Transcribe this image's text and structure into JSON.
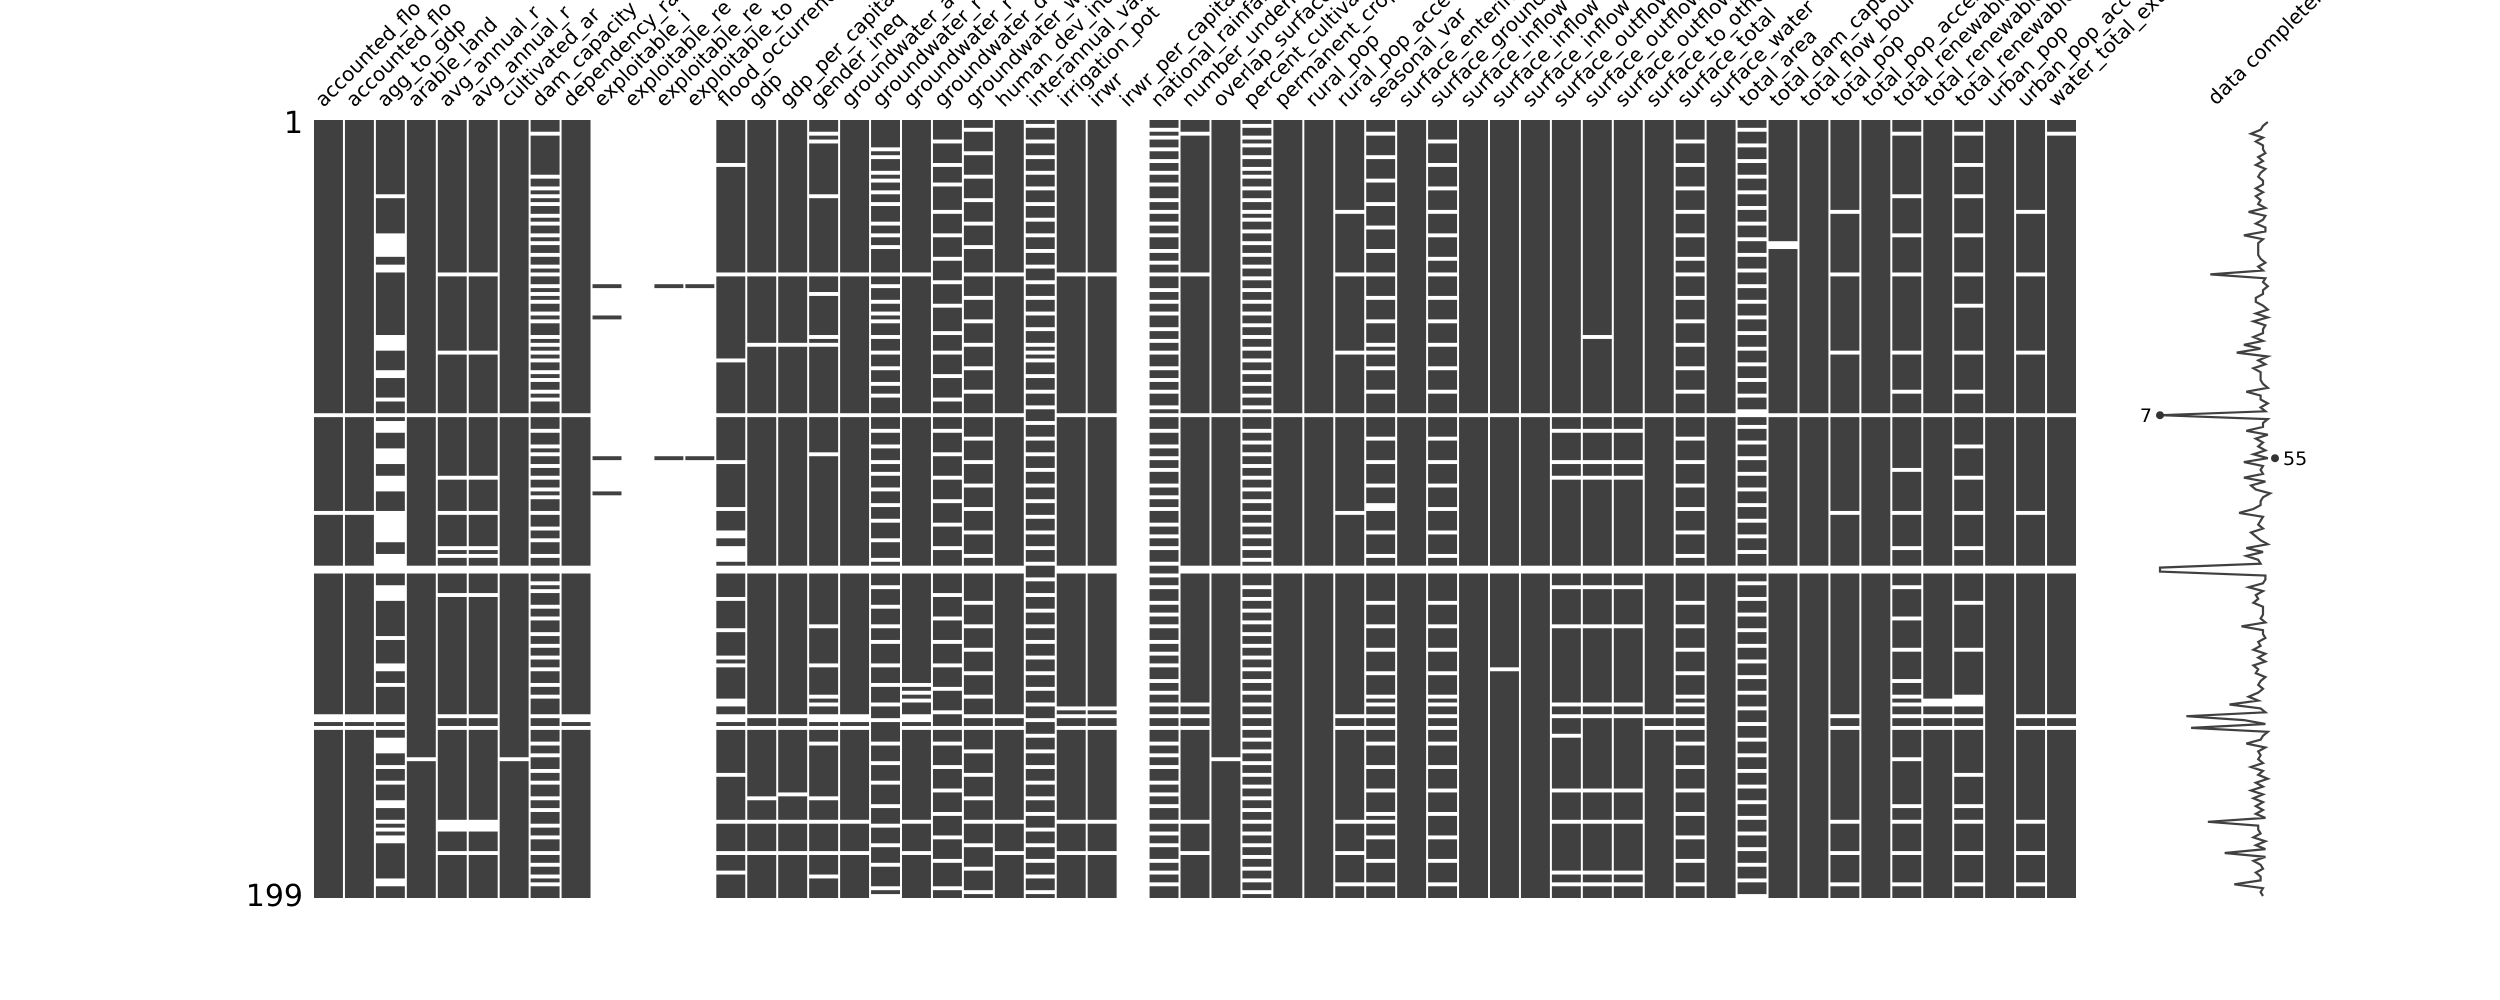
{
  "chart_data": {
    "type": "missingness-matrix",
    "matrix_color": "#404040",
    "background_color": "#ffffff",
    "row_range": [
      1,
      199
    ],
    "row_tick_labels": [
      "1",
      "199"
    ],
    "sparkline_label": "data completeness",
    "sparkline_annotations": {
      "min": {
        "value": 7,
        "row": 76
      },
      "max": {
        "value": 55,
        "row": 87
      }
    },
    "columns": [
      {
        "name": "accounted_flo",
        "missing_rows": [
          76,
          101,
          115,
          116,
          153,
          154,
          156
        ]
      },
      {
        "name": "accounted_flo",
        "missing_rows": [
          76,
          101,
          115,
          116,
          153,
          154,
          156
        ]
      },
      {
        "name": "agg_to_gdp",
        "missing_rows": [
          20,
          30,
          31,
          32,
          33,
          34,
          35,
          38,
          39,
          56,
          57,
          58,
          59,
          65,
          66,
          72,
          76,
          78,
          79,
          80,
          85,
          86,
          87,
          88,
          92,
          93,
          94,
          95,
          101,
          102,
          103,
          104,
          105,
          106,
          107,
          108,
          112,
          113,
          114,
          115,
          116,
          120,
          121,
          122,
          123,
          133,
          140,
          141,
          145,
          153,
          154,
          156,
          159,
          160,
          161,
          162,
          166,
          170,
          175,
          176,
          180,
          182,
          184,
          185,
          195,
          196
        ]
      },
      {
        "name": "arable_land",
        "missing_rows": [
          76,
          115,
          116,
          164
        ]
      },
      {
        "name": "avg_annual_r",
        "missing_rows": [
          40,
          60,
          76,
          92,
          101,
          110,
          112,
          115,
          116,
          122,
          153,
          156,
          180,
          181,
          182,
          188
        ]
      },
      {
        "name": "avg_annual_r",
        "missing_rows": [
          40,
          60,
          76,
          92,
          101,
          110,
          112,
          115,
          116,
          122,
          153,
          156,
          180,
          181,
          182,
          188
        ]
      },
      {
        "name": "cultivated_ar",
        "missing_rows": [
          76,
          115,
          116,
          164
        ]
      },
      {
        "name": "dam_capacity",
        "missing_rows": [
          4,
          15,
          18,
          20,
          22,
          25,
          27,
          30,
          32,
          35,
          38,
          40,
          43,
          45,
          47,
          50,
          52,
          56,
          58,
          60,
          62,
          65,
          67,
          70,
          72,
          76,
          80,
          84,
          86,
          89,
          92,
          95,
          97,
          101,
          105,
          108,
          112,
          115,
          116,
          119,
          121,
          125,
          128,
          132,
          135,
          138,
          141,
          145,
          148,
          153,
          156,
          160,
          163,
          167,
          170,
          174,
          177,
          181,
          184,
          188,
          191,
          194,
          196
        ]
      },
      {
        "name": "dependency_ra",
        "missing_rows": [
          76,
          115,
          116,
          153,
          154,
          156
        ]
      },
      {
        "name": "exploitable_i",
        "missing_rows": "1-42, 44-50, 52-86, 88-95, 97-199"
      },
      {
        "name": "exploitable_re",
        "missing_rows": "1-199"
      },
      {
        "name": "exploitable_re",
        "missing_rows": "1-42, 44-86, 88-199"
      },
      {
        "name": "exploitable_to",
        "missing_rows": "1-42, 44-86, 88-199"
      },
      {
        "name": "flood_occurrence",
        "missing_rows": [
          12,
          40,
          62,
          76,
          88,
          100,
          106,
          107,
          110,
          111,
          112,
          113,
          115,
          116,
          123,
          131,
          138,
          140,
          149,
          150,
          153,
          154,
          156,
          168,
          180,
          188,
          193
        ]
      },
      {
        "name": "gdp",
        "missing_rows": [
          40,
          58,
          76,
          115,
          116,
          153,
          156,
          174,
          180,
          188
        ]
      },
      {
        "name": "gdp_per_capita",
        "missing_rows": [
          40,
          58,
          76,
          115,
          116,
          153,
          156,
          173,
          180,
          188
        ]
      },
      {
        "name": "gender_ineq",
        "missing_rows": [
          4,
          6,
          20,
          40,
          45,
          56,
          58,
          76,
          86,
          115,
          116,
          130,
          140,
          148,
          150,
          153,
          154,
          156,
          160,
          174,
          180,
          188,
          194
        ]
      },
      {
        "name": "groundwater_a",
        "missing_rows": [
          40,
          76,
          115,
          116,
          153,
          154,
          156,
          180,
          188
        ]
      },
      {
        "name": "groundwater_r",
        "missing_rows": [
          8,
          10,
          14,
          16,
          19,
          22,
          27,
          30,
          33,
          40,
          43,
          47,
          50,
          52,
          56,
          60,
          64,
          68,
          71,
          76,
          80,
          84,
          88,
          91,
          95,
          99,
          103,
          108,
          113,
          115,
          116,
          120,
          125,
          130,
          134,
          140,
          145,
          150,
          154,
          160,
          165,
          170,
          176,
          181,
          186,
          191,
          197,
          199
        ]
      },
      {
        "name": "groundwater_r",
        "missing_rows": [
          40,
          76,
          115,
          116,
          145,
          147,
          149,
          153,
          154,
          156,
          180,
          188
        ]
      },
      {
        "name": "groundwater_d",
        "missing_rows": [
          6,
          12,
          17,
          24,
          30,
          36,
          42,
          48,
          55,
          60,
          66,
          72,
          76,
          80,
          86,
          92,
          98,
          104,
          110,
          115,
          116,
          122,
          128,
          134,
          140,
          146,
          152,
          156,
          160,
          166,
          172,
          178,
          184,
          190,
          197
        ]
      },
      {
        "name": "groundwater_w",
        "missing_rows": [
          3,
          9,
          15,
          21,
          27,
          33,
          40,
          46,
          52,
          58,
          64,
          70,
          76,
          82,
          88,
          94,
          100,
          106,
          112,
          115,
          116,
          124,
          130,
          136,
          142,
          148,
          153,
          156,
          162,
          168,
          174,
          180,
          186,
          192,
          198
        ]
      },
      {
        "name": "human_dev_index",
        "missing_rows": [
          40,
          76,
          115,
          116,
          153,
          156,
          180,
          188
        ]
      },
      {
        "name": "interannual_var",
        "missing_rows": [
          2,
          6,
          10,
          14,
          18,
          22,
          26,
          30,
          34,
          38,
          42,
          46,
          50,
          54,
          58,
          60,
          62,
          66,
          70,
          74,
          78,
          82,
          86,
          90,
          94,
          98,
          102,
          106,
          110,
          114,
          118,
          122,
          126,
          130,
          134,
          138,
          142,
          146,
          150,
          154,
          158,
          162,
          166,
          170,
          174,
          178,
          182,
          186,
          190,
          194,
          198
        ]
      },
      {
        "name": "irrigation_pot",
        "missing_rows": [
          40,
          76,
          115,
          116,
          151,
          153,
          156,
          180,
          188
        ]
      },
      {
        "name": "irwr",
        "missing_rows": [
          40,
          76,
          115,
          116,
          151,
          153,
          156,
          180,
          188
        ]
      },
      {
        "name": "irwr_per_capita",
        "missing_rows": "1-199"
      },
      {
        "name": "national_rainfall",
        "missing_rows": [
          3,
          5,
          8,
          11,
          14,
          17,
          21,
          24,
          27,
          30,
          34,
          37,
          40,
          44,
          47,
          50,
          54,
          57,
          60,
          64,
          67,
          70,
          74,
          76,
          80,
          84,
          87,
          90,
          94,
          97,
          100,
          104,
          107,
          110,
          114,
          117,
          120,
          124,
          127,
          130,
          134,
          137,
          140,
          144,
          147,
          150,
          153,
          156,
          160,
          163,
          166,
          170,
          173,
          176,
          180,
          183,
          186,
          190,
          193,
          196
        ]
      },
      {
        "name": "number_undernourished",
        "missing_rows": [
          4,
          40,
          76,
          115,
          116,
          150,
          153,
          156,
          180,
          188
        ]
      },
      {
        "name": "overlap_surface",
        "missing_rows": [
          76,
          115,
          116,
          164
        ]
      },
      {
        "name": "percent_cultivated",
        "missing_rows": [
          2,
          5,
          7,
          10,
          13,
          15,
          18,
          21,
          24,
          26,
          29,
          32,
          35,
          38,
          41,
          44,
          47,
          50,
          53,
          56,
          59,
          62,
          65,
          68,
          71,
          74,
          76,
          80,
          83,
          86,
          89,
          92,
          95,
          98,
          101,
          104,
          107,
          110,
          113,
          115,
          116,
          120,
          123,
          126,
          129,
          132,
          135,
          138,
          141,
          144,
          147,
          150,
          153,
          156,
          159,
          162,
          165,
          168,
          171,
          174,
          177,
          180,
          183,
          186,
          189,
          192,
          195,
          198
        ]
      },
      {
        "name": "permanent_crop",
        "missing_rows": [
          76,
          115,
          116
        ]
      },
      {
        "name": "rural_pop",
        "missing_rows": [
          76,
          115,
          116
        ]
      },
      {
        "name": "rural_pop_access",
        "missing_rows": [
          24,
          40,
          60,
          76,
          101,
          115,
          116,
          153,
          156,
          180,
          188,
          196
        ]
      },
      {
        "name": "seasonal_var",
        "missing_rows": [
          4,
          10,
          16,
          22,
          28,
          34,
          40,
          46,
          52,
          58,
          60,
          64,
          70,
          76,
          82,
          88,
          94,
          99,
          100,
          106,
          112,
          115,
          116,
          124,
          130,
          136,
          142,
          148,
          150,
          153,
          156,
          160,
          166,
          172,
          178,
          180,
          184,
          190,
          196
        ]
      },
      {
        "name": "surface_entering",
        "missing_rows": [
          76,
          115,
          116
        ]
      },
      {
        "name": "surface_groundwater",
        "missing_rows": [
          6,
          12,
          18,
          24,
          30,
          36,
          40,
          46,
          52,
          58,
          64,
          70,
          76,
          82,
          88,
          94,
          100,
          106,
          112,
          115,
          116,
          124,
          130,
          136,
          142,
          148,
          150,
          153,
          156,
          160,
          166,
          172,
          178,
          184,
          190,
          196
        ]
      },
      {
        "name": "surface_inflow",
        "missing_rows": [
          76,
          115,
          116
        ]
      },
      {
        "name": "surface_inflow",
        "missing_rows": [
          76,
          115,
          116,
          141
        ]
      },
      {
        "name": "surface_inflow",
        "missing_rows": [
          76,
          115,
          116
        ]
      },
      {
        "name": "surface_outflow",
        "missing_rows": [
          76,
          80,
          88,
          92,
          115,
          116,
          120,
          130,
          150,
          153,
          158,
          172,
          180,
          193,
          196
        ]
      },
      {
        "name": "surface_outflow",
        "missing_rows": [
          56,
          76,
          80,
          88,
          92,
          115,
          116,
          120,
          130,
          150,
          153,
          172,
          180,
          193,
          196
        ]
      },
      {
        "name": "surface_outflow",
        "missing_rows": [
          76,
          80,
          88,
          92,
          115,
          116,
          120,
          130,
          150,
          153,
          172,
          180,
          193,
          196
        ]
      },
      {
        "name": "surface_to_other",
        "missing_rows": [
          76,
          115,
          116,
          153,
          156
        ]
      },
      {
        "name": "surface_total",
        "missing_rows": [
          6,
          12,
          18,
          24,
          30,
          36,
          40,
          46,
          52,
          58,
          64,
          70,
          76,
          82,
          88,
          94,
          100,
          106,
          112,
          115,
          116,
          124,
          130,
          136,
          142,
          148,
          150,
          153,
          156,
          160,
          166,
          172,
          178,
          184,
          190,
          196
        ]
      },
      {
        "name": "surface_water",
        "missing_rows": [
          76,
          115,
          116
        ]
      },
      {
        "name": "total_area",
        "missing_rows": [
          3,
          7,
          11,
          15,
          19,
          23,
          27,
          31,
          35,
          39,
          43,
          47,
          51,
          55,
          59,
          63,
          67,
          71,
          75,
          76,
          79,
          83,
          87,
          91,
          95,
          99,
          103,
          107,
          111,
          115,
          116,
          119,
          123,
          127,
          131,
          135,
          139,
          143,
          147,
          151,
          155,
          159,
          163,
          167,
          171,
          175,
          179,
          183,
          187,
          191,
          195,
          199
        ]
      },
      {
        "name": "total_dam_capacity",
        "missing_rows": [
          32,
          33,
          76,
          115,
          116
        ]
      },
      {
        "name": "total_flow_boundary",
        "missing_rows": [
          76,
          115,
          116
        ]
      },
      {
        "name": "total_pop",
        "missing_rows": [
          24,
          40,
          60,
          76,
          101,
          115,
          116,
          153,
          156,
          180,
          188,
          196
        ]
      },
      {
        "name": "total_pop_access",
        "missing_rows": [
          76,
          115,
          116
        ]
      },
      {
        "name": "total_renewable",
        "missing_rows": [
          4,
          20,
          30,
          40,
          60,
          70,
          76,
          90,
          101,
          110,
          115,
          116,
          120,
          128,
          136,
          144,
          148,
          150,
          153,
          156,
          164,
          176,
          180,
          188,
          196
        ]
      },
      {
        "name": "total_renewable",
        "missing_rows": [
          76,
          115,
          116,
          149,
          150,
          153,
          156
        ]
      },
      {
        "name": "total_renewable",
        "missing_rows": [
          4,
          12,
          20,
          30,
          40,
          48,
          60,
          70,
          76,
          84,
          92,
          101,
          110,
          115,
          116,
          124,
          136,
          148,
          149,
          150,
          153,
          156,
          168,
          176,
          180,
          188,
          196
        ]
      },
      {
        "name": "urban_pop",
        "missing_rows": [
          76,
          115,
          116
        ]
      },
      {
        "name": "urban_pop_access",
        "missing_rows": [
          24,
          40,
          60,
          76,
          101,
          115,
          116,
          153,
          156,
          180,
          188,
          196
        ]
      },
      {
        "name": "water_total_external",
        "missing_rows": [
          4,
          76,
          115,
          116,
          153,
          156
        ]
      }
    ]
  }
}
